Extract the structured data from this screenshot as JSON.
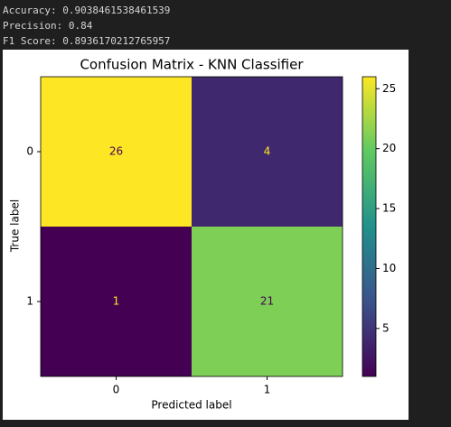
{
  "output_lines": [
    "Accuracy: 0.9038461538461539",
    "Precision: 0.84",
    "F1 Score: 0.8936170212765957"
  ],
  "chart_data": {
    "type": "heatmap",
    "title": "Confusion Matrix - KNN Classifier",
    "xlabel": "Predicted label",
    "ylabel": "True label",
    "xcategories": [
      "0",
      "1"
    ],
    "ycategories": [
      "0",
      "1"
    ],
    "values": [
      [
        26,
        4
      ],
      [
        1,
        21
      ]
    ],
    "colormap": "viridis",
    "clim": [
      1,
      26
    ],
    "cticks": [
      5,
      10,
      15,
      20,
      25
    ]
  }
}
